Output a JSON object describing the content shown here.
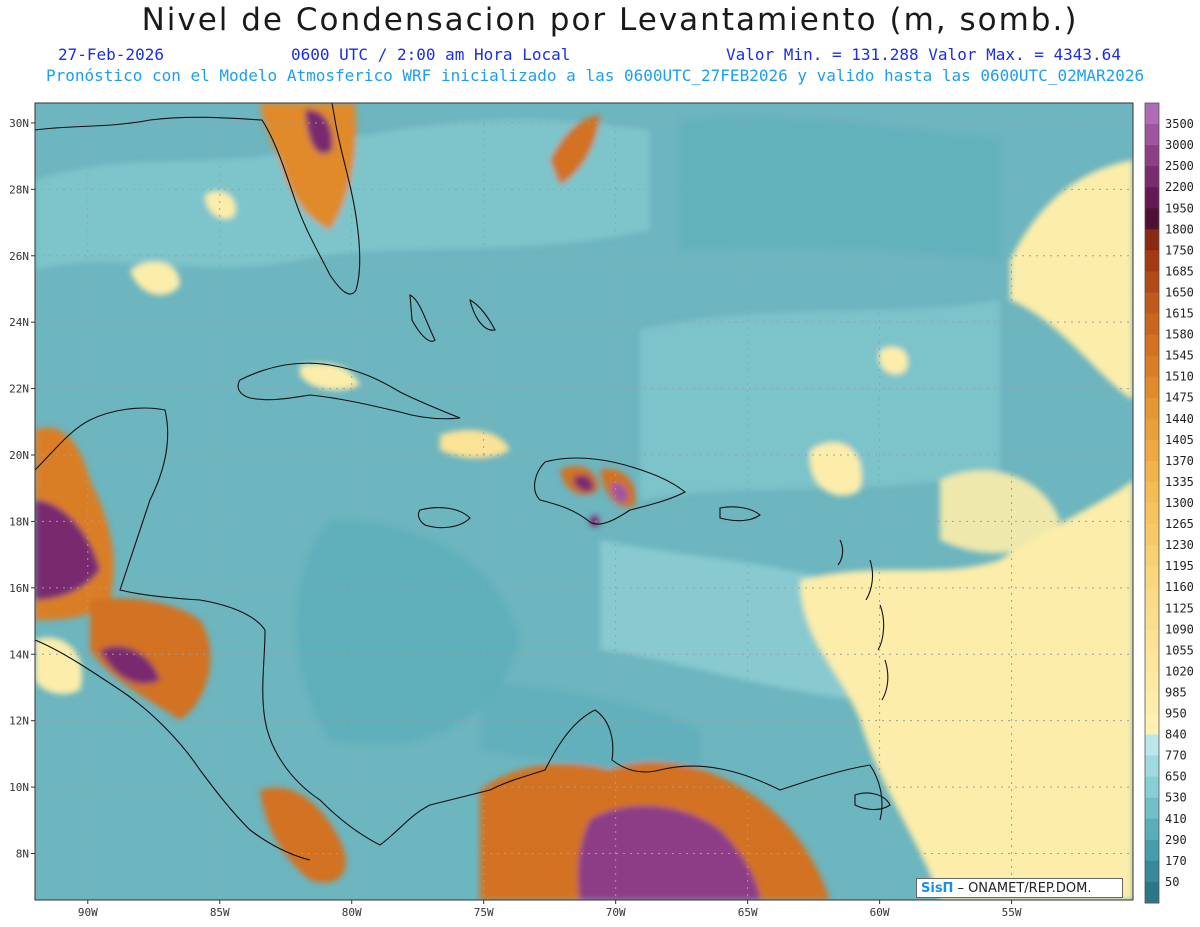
{
  "title": "Nivel de Condensacion por Levantamiento (m, somb.)",
  "header": {
    "date": "27-Feb-2026",
    "time": "0600 UTC / 2:00 am Hora Local",
    "range": "Valor Min. = 131.288   Valor Max. = 4343.64",
    "model": "Pronóstico con el Modelo Atmosferico WRF inicializado a las 0600UTC_27FEB2026 y valido hasta las  0600UTC_02MAR2026"
  },
  "credit": {
    "logo": "SisΠ",
    "text": "– ONAMET/REP.DOM."
  },
  "map": {
    "lon_min": -92.0,
    "lon_max": -50.4,
    "lat_min": 6.6,
    "lat_max": 30.6,
    "lat_ticks": [
      {
        "lat": 30,
        "label": "30N"
      },
      {
        "lat": 28,
        "label": "28N"
      },
      {
        "lat": 26,
        "label": "26N"
      },
      {
        "lat": 24,
        "label": "24N"
      },
      {
        "lat": 22,
        "label": "22N"
      },
      {
        "lat": 20,
        "label": "20N"
      },
      {
        "lat": 18,
        "label": "18N"
      },
      {
        "lat": 16,
        "label": "16N"
      },
      {
        "lat": 14,
        "label": "14N"
      },
      {
        "lat": 12,
        "label": "12N"
      },
      {
        "lat": 10,
        "label": "10N"
      },
      {
        "lat": 8,
        "label": "8N"
      }
    ],
    "lon_ticks": [
      {
        "lon": -90,
        "label": "90W"
      },
      {
        "lon": -85,
        "label": "85W"
      },
      {
        "lon": -80,
        "label": "80W"
      },
      {
        "lon": -75,
        "label": "75W"
      },
      {
        "lon": -70,
        "label": "70W"
      },
      {
        "lon": -65,
        "label": "65W"
      },
      {
        "lon": -60,
        "label": "60W"
      },
      {
        "lon": -55,
        "label": "55W"
      }
    ]
  },
  "colorbar": {
    "levels": [
      {
        "label": "3500",
        "color": "#b06bb8"
      },
      {
        "label": "3000",
        "color": "#a0559f"
      },
      {
        "label": "2500",
        "color": "#8c3e86"
      },
      {
        "label": "2200",
        "color": "#792c6e"
      },
      {
        "label": "1950",
        "color": "#631a54"
      },
      {
        "label": "1800",
        "color": "#4f1034"
      },
      {
        "label": "1750",
        "color": "#8a2a12"
      },
      {
        "label": "1685",
        "color": "#a33a14"
      },
      {
        "label": "1650",
        "color": "#b24a18"
      },
      {
        "label": "1615",
        "color": "#bf5a1c"
      },
      {
        "label": "1580",
        "color": "#c8661e"
      },
      {
        "label": "1545",
        "color": "#d27222"
      },
      {
        "label": "1510",
        "color": "#da7e26"
      },
      {
        "label": "1475",
        "color": "#e08a2c"
      },
      {
        "label": "1440",
        "color": "#e69632"
      },
      {
        "label": "1405",
        "color": "#eaa038"
      },
      {
        "label": "1370",
        "color": "#eeaa40"
      },
      {
        "label": "1335",
        "color": "#f1b44a"
      },
      {
        "label": "1300",
        "color": "#f3bc54"
      },
      {
        "label": "1265",
        "color": "#f5c45e"
      },
      {
        "label": "1230",
        "color": "#f6ca68"
      },
      {
        "label": "1195",
        "color": "#f7d072"
      },
      {
        "label": "1160",
        "color": "#f8d67c"
      },
      {
        "label": "1125",
        "color": "#f9da86"
      },
      {
        "label": "1090",
        "color": "#faDe8e"
      },
      {
        "label": "1055",
        "color": "#fbe296"
      },
      {
        "label": "1020",
        "color": "#fbe69c"
      },
      {
        "label": "985",
        "color": "#fce9a2"
      },
      {
        "label": "950",
        "color": "#fcedaa"
      },
      {
        "label": "840",
        "color": "#fdf0b0"
      },
      {
        "label": "770",
        "color": "#b9e7ea"
      },
      {
        "label": "650",
        "color": "#9edadf"
      },
      {
        "label": "530",
        "color": "#88ced4"
      },
      {
        "label": "410",
        "color": "#72bfc7"
      },
      {
        "label": "290",
        "color": "#5aaeb9"
      },
      {
        "label": "170",
        "color": "#469dab"
      },
      {
        "label": "50",
        "color": "#37889a"
      },
      {
        "label": "",
        "color": "#2c7688"
      }
    ]
  },
  "colors": {
    "ocean_base": "#6db5bf",
    "ocean_light": "#88ced4",
    "ocean_dark": "#5aaeb9",
    "coast": "#111111",
    "grid": "#9aa0a6"
  }
}
